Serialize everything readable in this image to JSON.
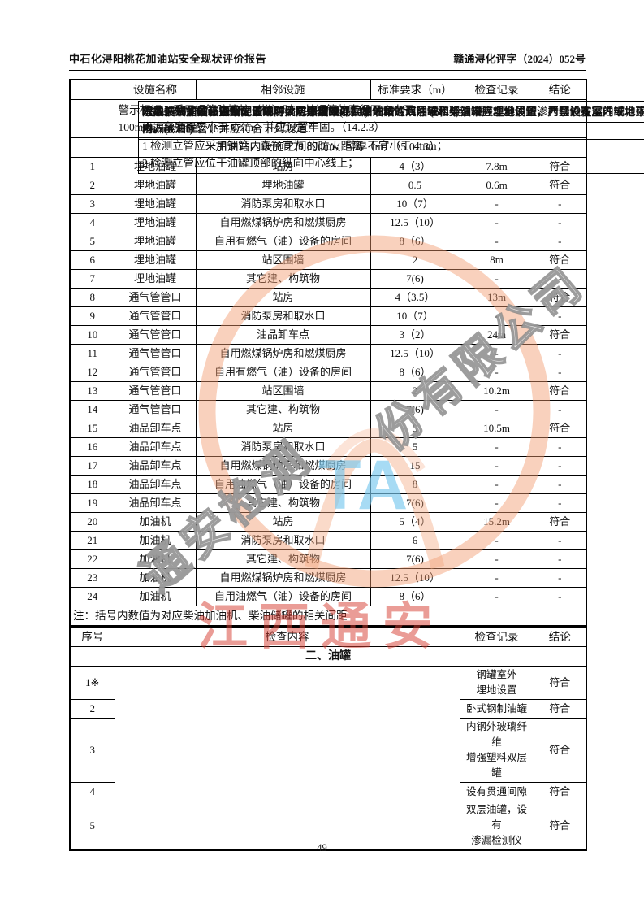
{
  "header": {
    "left_title": "中石化浔阳桃花加油站安全现状评价报告",
    "right_doc_number": "赣通浔化评字（2024）052号"
  },
  "carryover_row": {
    "text": "警示标识。采用钢管防撞柱（栏）时，其钢管的直径不应小于 100mm，高度不应小于 0.5m，并应设置牢固。（14.2.3）"
  },
  "fire_distance_table": {
    "title": "加油站内设施之间的防火距离（m）（5.0.13）",
    "columns": [
      "",
      "设施名称",
      "相邻设施",
      "标准要求（m）",
      "检查记录",
      "结论"
    ],
    "rows": [
      [
        "1",
        "埋地油罐",
        "站房",
        "4（3）",
        "7.8m",
        "符合"
      ],
      [
        "2",
        "埋地油罐",
        "埋地油罐",
        "0.5",
        "0.6m",
        "符合"
      ],
      [
        "3",
        "埋地油罐",
        "消防泵房和取水口",
        "10（7）",
        "-",
        "-"
      ],
      [
        "4",
        "埋地油罐",
        "自用燃煤锅炉房和燃煤厨房",
        "12.5（10）",
        "-",
        "-"
      ],
      [
        "5",
        "埋地油罐",
        "自用有燃气（油）设备的房间",
        "8（6）",
        "-",
        "-"
      ],
      [
        "6",
        "埋地油罐",
        "站区围墙",
        "2",
        "8m",
        "符合"
      ],
      [
        "7",
        "埋地油罐",
        "其它建、构筑物",
        "7(6)",
        "-",
        "-"
      ],
      [
        "8",
        "通气管管口",
        "站房",
        "4（3.5）",
        "13m",
        "符合"
      ],
      [
        "9",
        "通气管管口",
        "消防泵房和取水口",
        "10（7）",
        "-",
        "-"
      ],
      [
        "10",
        "通气管管口",
        "油品卸车点",
        "3（2）",
        "24m",
        "符合"
      ],
      [
        "11",
        "通气管管口",
        "自用燃煤锅炉房和燃煤厨房",
        "12.5（10）",
        "-",
        "-"
      ],
      [
        "12",
        "通气管管口",
        "自用有燃气（油）设备的房间",
        "8（6）",
        "-",
        "-"
      ],
      [
        "13",
        "通气管管口",
        "站区围墙",
        "2",
        "10.2m",
        "符合"
      ],
      [
        "14",
        "通气管管口",
        "其它建、构筑物",
        "7(6)",
        "-",
        "-"
      ],
      [
        "15",
        "油品卸车点",
        "站房",
        "5",
        "10.5m",
        "符合"
      ],
      [
        "16",
        "油品卸车点",
        "消防泵房和取水口",
        "5",
        "-",
        "-"
      ],
      [
        "17",
        "油品卸车点",
        "自用燃煤锅炉房和燃煤厨房",
        "15",
        "-",
        "-"
      ],
      [
        "18",
        "油品卸车点",
        "自用油燃气（油）设备的房间",
        "8",
        "-",
        "-"
      ],
      [
        "19",
        "油品卸车点",
        "其它建、构筑物",
        "7(6)",
        "-",
        "-"
      ],
      [
        "20",
        "加油机",
        "站房",
        "5（4）",
        "15.2m",
        "符合"
      ],
      [
        "21",
        "加油机",
        "消防泵房和取水口",
        "6",
        "-",
        "-"
      ],
      [
        "22",
        "加油机",
        "其它建、构筑物",
        "7(6)",
        "-",
        "-"
      ],
      [
        "23",
        "加油机",
        "自用燃煤锅炉房和燃煤厨房",
        "12.5（10）",
        "-",
        "-"
      ],
      [
        "24",
        "加油机",
        "自用油燃气（油）设备的房间",
        "8（6）",
        "-",
        "-"
      ]
    ],
    "note": "注：括号内数值为对应柴油加油机、柴油储罐的相关间距"
  },
  "tank_section": {
    "title": "二、油罐",
    "columns": [
      "序号",
      "检查内容",
      "检查记录",
      "结论"
    ],
    "rows": [
      {
        "no": "1※",
        "bold": true,
        "content_lines": [
          "除撬装式加油装置所配置的防火防爆油罐外，加油站的汽油罐和柴油罐应埋地设置，严禁设在室内或地下室内。(6.1.1)"
        ],
        "record_lines": [
          "钢罐室外",
          "埋地设置"
        ],
        "conclusion": "符合"
      },
      {
        "no": "2",
        "bold": false,
        "content_lines": [
          "汽车加油站的储油罐，应采用卧式油罐。(6.1.2)"
        ],
        "record_lines": [
          "卧式钢制油罐"
        ],
        "conclusion": "符合"
      },
      {
        "no": "3",
        "bold": false,
        "content_lines": [
          "埋地油罐需要采用双层油罐时，可采用双层钢制油罐、双层玻璃纤维增强塑料油罐、内钢外玻璃纤维增强塑料双层油罐。（6.1.3）"
        ],
        "record_lines": [
          "内钢外玻璃纤维",
          "增强塑料双层罐"
        ],
        "conclusion": "符合"
      },
      {
        "no": "4",
        "bold": false,
        "content_lines": [
          "双层油罐内壁与外壁之间应有满足渗漏检测要求的贯通间隙.(6.1.9)"
        ],
        "record_lines": [
          "设有贯通间隙"
        ],
        "conclusion": "符合"
      },
      {
        "no": "5",
        "bold": false,
        "content_lines": [
          "双层钢制油罐、内钢外玻璃纤维增强塑料双层油罐和玻璃纤维增强塑料等非金属防渗衬里的双层油罐，应设渗漏检测立管，并应符合下列规定：",
          "1 检测立管应采用钢管，直径宜为 80mm，壁厚不宜小于 4mm；",
          "2 检测立管应位于油罐顶部的纵向中心线上；"
        ],
        "record_lines": [
          "双层油罐，设有",
          "渗漏检测仪"
        ],
        "conclusion": "符合"
      }
    ]
  },
  "footer": {
    "page_number": "49"
  },
  "watermark": {
    "red_stamp_text": "江西通安",
    "arc_text_lower": "通安检测",
    "arc_text_upper": "份有限公司",
    "blue_text": "TA",
    "seal_ring_color": "#F2996C",
    "red_color": "#D63A2D",
    "blue_color": "#78C8EE",
    "gray_outline_color": "#808080"
  }
}
